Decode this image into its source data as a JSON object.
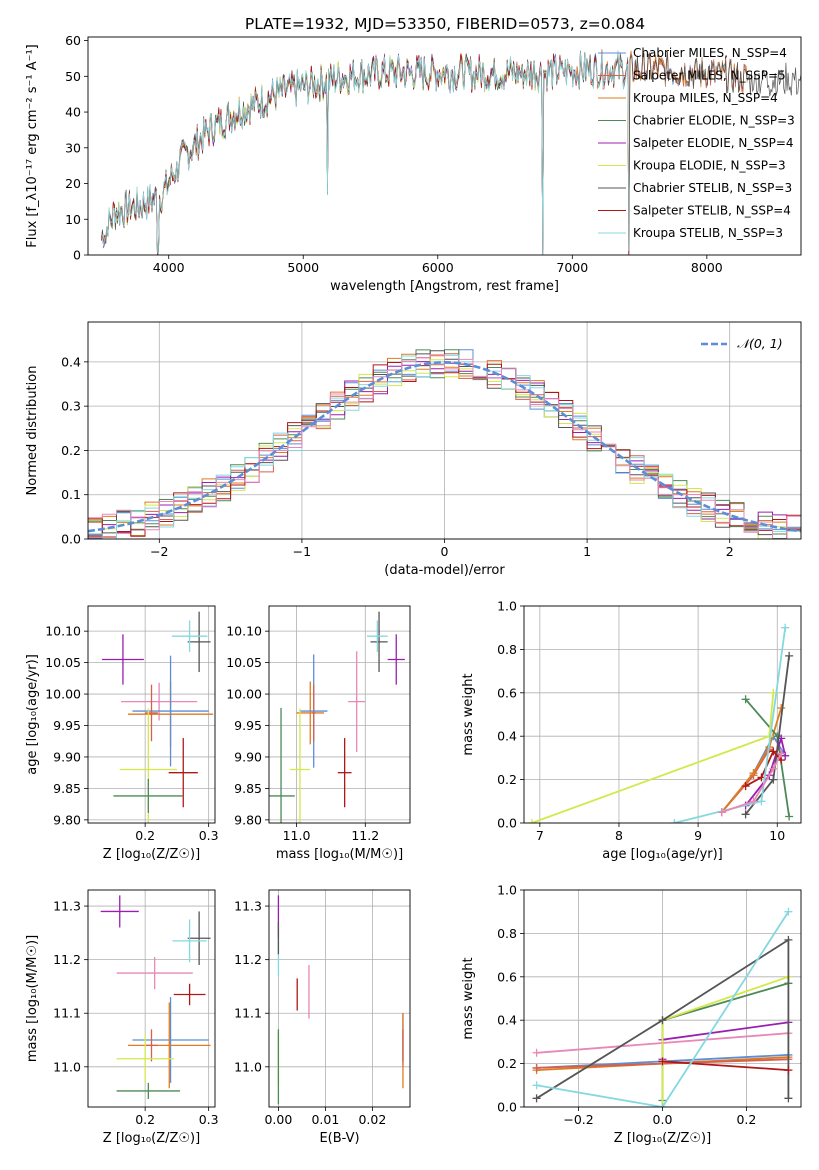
{
  "figure": {
    "title": "PLATE=1932, MJD=53350, FIBERID=0573, z=0.084"
  },
  "colors": {
    "c_miles": "#5b8ed6",
    "s_miles": "#d6604d",
    "k_miles": "#e07b20",
    "c_elodie": "#4e8a57",
    "s_elodie": "#9a1fb0",
    "k_elodie": "#d4e84a",
    "c_stelib": "#555555",
    "s_stelib": "#b01818",
    "k_stelib": "#84d8e0",
    "pink": "#e887b8",
    "normal": "#5b8ed6"
  },
  "chart_data": [
    {
      "id": "spectrum",
      "type": "line",
      "xlabel": "wavelength [Angstrom, rest frame]",
      "ylabel": "Flux [f_λ10⁻¹⁷ erg cm⁻² s⁻¹ A⁻¹]",
      "xlim": [
        3400,
        8700
      ],
      "ylim": [
        0,
        61
      ],
      "xticks": [
        4000,
        5000,
        6000,
        7000,
        8000
      ],
      "yticks": [
        0,
        10,
        20,
        30,
        40,
        50,
        60
      ],
      "continuum": {
        "x": [
          3500,
          3600,
          3800,
          3950,
          4100,
          4300,
          4500,
          4800,
          5000,
          5300,
          5600,
          6000,
          6400,
          6800,
          7200,
          7600,
          8000,
          8400
        ],
        "y": [
          5,
          12,
          14,
          17,
          27,
          35,
          40,
          45,
          47,
          50,
          51,
          51,
          51,
          51,
          52,
          52,
          51,
          49
        ]
      },
      "dropouts": [
        {
          "x": 3530,
          "y": 4
        },
        {
          "x": 3920,
          "y": 0
        },
        {
          "x": 5180,
          "y": 18
        },
        {
          "x": 6780,
          "y": 0
        },
        {
          "x": 7420,
          "y": 0
        }
      ],
      "series": [
        {
          "name": "Chabrier MILES, N_SSP=4",
          "color_key": "c_miles",
          "xmax": 8300
        },
        {
          "name": "Salpeter MILES, N_SSP=5",
          "color_key": "s_miles",
          "xmax": 8300
        },
        {
          "name": "Kroupa MILES, N_SSP=4",
          "color_key": "k_miles",
          "xmax": 8300
        },
        {
          "name": "Chabrier ELODIE, N_SSP=3",
          "color_key": "c_elodie",
          "xmax": 6800
        },
        {
          "name": "Salpeter ELODIE, N_SSP=4",
          "color_key": "s_elodie",
          "xmax": 6800
        },
        {
          "name": "Kroupa ELODIE, N_SSP=3",
          "color_key": "k_elodie",
          "xmax": 6800
        },
        {
          "name": "Chabrier STELIB, N_SSP=3",
          "color_key": "c_stelib",
          "xmax": 8700
        },
        {
          "name": "Salpeter STELIB, N_SSP=4",
          "color_key": "s_stelib",
          "xmax": 7420
        },
        {
          "name": "Kroupa STELIB, N_SSP=3",
          "color_key": "k_stelib",
          "xmax": 7420
        }
      ]
    },
    {
      "id": "residuals",
      "type": "histogram",
      "xlabel": "(data-model)/error",
      "ylabel": "Normed distribution",
      "xlim": [
        -2.5,
        2.5
      ],
      "ylim": [
        0,
        0.49
      ],
      "xticks": [
        -2,
        -1,
        0,
        1,
        2
      ],
      "yticks": [
        0.0,
        0.1,
        0.2,
        0.3,
        0.4
      ],
      "grid": true,
      "bin_width": 0.1,
      "legend": {
        "label": "𝒩(0, 1)",
        "position": "top-right"
      },
      "curve": {
        "name": "N(0,1)",
        "mean": 0,
        "sigma": 1
      }
    },
    {
      "id": "age_vs_Z",
      "type": "scatter",
      "xlabel": "Z [log₁₀(Z/Z☉)]",
      "ylabel": "age  [log₁₀(age/yr)]",
      "xlim": [
        0.11,
        0.31
      ],
      "ylim": [
        9.795,
        10.14
      ],
      "xticks": [
        0.2,
        0.3
      ],
      "yticks": [
        9.8,
        9.85,
        9.9,
        9.95,
        10.0,
        10.05,
        10.1
      ],
      "grid": true,
      "points": [
        {
          "color_key": "s_elodie",
          "x": 0.165,
          "y": 10.055,
          "xerr": 0.033,
          "yerr": 0.04
        },
        {
          "color_key": "c_stelib",
          "x": 0.285,
          "y": 10.083,
          "xerr": 0.018,
          "yerr": 0.048
        },
        {
          "color_key": "k_stelib",
          "x": 0.27,
          "y": 10.092,
          "xerr": 0.028,
          "yerr": 0.025
        },
        {
          "color_key": "pink",
          "x": 0.222,
          "y": 9.988,
          "xerr": 0.06,
          "yerr": 0.03
        },
        {
          "color_key": "k_miles",
          "x": 0.24,
          "y": 9.968,
          "xerr": 0.067,
          "yerr": 0.052
        },
        {
          "color_key": "c_miles",
          "x": 0.24,
          "y": 9.973,
          "xerr": 0.06,
          "yerr": 0.088
        },
        {
          "color_key": "s_miles",
          "x": 0.21,
          "y": 9.97,
          "xerr": 0.01,
          "yerr": 0.045
        },
        {
          "color_key": "k_elodie",
          "x": 0.205,
          "y": 9.88,
          "xerr": 0.045,
          "yerr": 0.097
        },
        {
          "color_key": "s_stelib",
          "x": 0.26,
          "y": 9.875,
          "xerr": 0.023,
          "yerr": 0.055
        },
        {
          "color_key": "c_elodie",
          "x": 0.205,
          "y": 9.838,
          "xerr": 0.055,
          "yerr": 0.027
        }
      ]
    },
    {
      "id": "age_vs_mass",
      "type": "scatter",
      "xlabel": "mass [log₁₀(M/M☉)]",
      "ylabel": "",
      "xlim": [
        10.92,
        11.33
      ],
      "ylim": [
        9.795,
        10.14
      ],
      "xticks": [
        11.0,
        11.2
      ],
      "yticks": [
        9.8,
        9.85,
        9.9,
        9.95,
        10.0,
        10.05,
        10.1
      ],
      "grid": true,
      "points": [
        {
          "color_key": "s_elodie",
          "x": 11.29,
          "y": 10.055,
          "xerr": 0.025,
          "yerr": 0.04
        },
        {
          "color_key": "c_stelib",
          "x": 11.24,
          "y": 10.083,
          "xerr": 0.025,
          "yerr": 0.048
        },
        {
          "color_key": "k_stelib",
          "x": 11.235,
          "y": 10.092,
          "xerr": 0.03,
          "yerr": 0.025
        },
        {
          "color_key": "pink",
          "x": 11.175,
          "y": 9.988,
          "xerr": 0.025,
          "yerr": 0.08
        },
        {
          "color_key": "k_miles",
          "x": 11.04,
          "y": 9.97,
          "xerr": 0.04,
          "yerr": 0.05
        },
        {
          "color_key": "c_miles",
          "x": 11.05,
          "y": 9.973,
          "xerr": 0.04,
          "yerr": 0.09
        },
        {
          "color_key": "s_miles",
          "x": 11.05,
          "y": 9.97,
          "xerr": 0.005,
          "yerr": 0.045
        },
        {
          "color_key": "k_elodie",
          "x": 11.01,
          "y": 9.88,
          "xerr": 0.03,
          "yerr": 0.097
        },
        {
          "color_key": "s_stelib",
          "x": 11.14,
          "y": 9.875,
          "xerr": 0.02,
          "yerr": 0.055
        },
        {
          "color_key": "c_elodie",
          "x": 10.955,
          "y": 9.838,
          "xerr": 0.04,
          "yerr": 0.14
        }
      ]
    },
    {
      "id": "weight_vs_age",
      "type": "line",
      "xlabel": "age  [log₁₀(age/yr)]",
      "ylabel": "mass weight",
      "xlim": [
        6.8,
        10.3
      ],
      "ylim": [
        0,
        1
      ],
      "xticks": [
        7,
        8,
        9,
        10
      ],
      "yticks": [
        0.0,
        0.2,
        0.4,
        0.6,
        0.8,
        1.0
      ],
      "grid": true,
      "series": [
        {
          "color_key": "c_miles",
          "x": [
            9.3,
            9.7,
            9.95,
            10.1
          ],
          "y": [
            0.05,
            0.23,
            0.4,
            0.31
          ]
        },
        {
          "color_key": "s_miles",
          "x": [
            9.3,
            9.7,
            9.9,
            10.05
          ],
          "y": [
            0.05,
            0.22,
            0.34,
            0.31
          ]
        },
        {
          "color_key": "k_miles",
          "x": [
            9.3,
            9.7,
            9.9,
            10.05
          ],
          "y": [
            0.05,
            0.23,
            0.35,
            0.53
          ]
        },
        {
          "color_key": "c_elodie",
          "x": [
            9.6,
            10.0,
            10.15
          ],
          "y": [
            0.57,
            0.4,
            0.03
          ]
        },
        {
          "color_key": "s_elodie",
          "x": [
            9.6,
            9.9,
            10.05,
            10.1
          ],
          "y": [
            0.08,
            0.22,
            0.39,
            0.31
          ]
        },
        {
          "color_key": "k_elodie",
          "x": [
            6.9,
            9.9,
            9.95
          ],
          "y": [
            0.0,
            0.4,
            0.6
          ]
        },
        {
          "color_key": "c_stelib",
          "x": [
            9.6,
            9.95,
            10.15
          ],
          "y": [
            0.04,
            0.2,
            0.77
          ]
        },
        {
          "color_key": "s_stelib",
          "x": [
            9.6,
            9.8,
            9.95,
            10.05
          ],
          "y": [
            0.17,
            0.21,
            0.33,
            0.29
          ]
        },
        {
          "color_key": "k_stelib",
          "x": [
            8.7,
            9.8,
            10.1
          ],
          "y": [
            0.0,
            0.1,
            0.9
          ]
        },
        {
          "color_key": "pink",
          "x": [
            9.3,
            9.7,
            9.95,
            10.05
          ],
          "y": [
            0.05,
            0.1,
            0.25,
            0.32
          ]
        }
      ]
    },
    {
      "id": "mass_vs_Z",
      "type": "scatter",
      "xlabel": "Z [log₁₀(Z/Z☉)]",
      "ylabel": "mass [log₁₀(M/M☉)]",
      "xlim": [
        0.11,
        0.31
      ],
      "ylim": [
        10.925,
        11.33
      ],
      "xticks": [
        0.2,
        0.3
      ],
      "yticks": [
        11.0,
        11.1,
        11.2,
        11.3
      ],
      "grid": true,
      "points": [
        {
          "color_key": "s_elodie",
          "x": 0.16,
          "y": 11.29,
          "xerr": 0.03,
          "yerr": 0.03
        },
        {
          "color_key": "c_stelib",
          "x": 0.285,
          "y": 11.24,
          "xerr": 0.018,
          "yerr": 0.05
        },
        {
          "color_key": "k_stelib",
          "x": 0.27,
          "y": 11.235,
          "xerr": 0.027,
          "yerr": 0.04
        },
        {
          "color_key": "pink",
          "x": 0.215,
          "y": 11.175,
          "xerr": 0.06,
          "yerr": 0.03
        },
        {
          "color_key": "s_stelib",
          "x": 0.27,
          "y": 11.135,
          "xerr": 0.025,
          "yerr": 0.02
        },
        {
          "color_key": "c_miles",
          "x": 0.24,
          "y": 11.05,
          "xerr": 0.06,
          "yerr": 0.08
        },
        {
          "color_key": "k_miles",
          "x": 0.238,
          "y": 11.04,
          "xerr": 0.065,
          "yerr": 0.08
        },
        {
          "color_key": "s_miles",
          "x": 0.21,
          "y": 11.04,
          "xerr": 0.01,
          "yerr": 0.03
        },
        {
          "color_key": "k_elodie",
          "x": 0.2,
          "y": 11.015,
          "xerr": 0.045,
          "yerr": 0.045
        },
        {
          "color_key": "c_elodie",
          "x": 0.205,
          "y": 10.955,
          "xerr": 0.05,
          "yerr": 0.015
        }
      ]
    },
    {
      "id": "mass_vs_ebv",
      "type": "scatter",
      "xlabel": "E(B-V)",
      "ylabel": "",
      "xlim": [
        -0.002,
        0.028
      ],
      "ylim": [
        10.925,
        11.33
      ],
      "xticks": [
        0.0,
        0.01,
        0.02
      ],
      "xticklabels": [
        "0.00",
        "0.01",
        "0.02"
      ],
      "yticks": [
        11.0,
        11.1,
        11.2,
        11.3
      ],
      "grid": true,
      "points": [
        {
          "color_key": "s_elodie",
          "x": 0.0,
          "y": 11.28,
          "xerr": 0,
          "yerr": 0.04
        },
        {
          "color_key": "k_stelib",
          "x": 0.0,
          "y": 11.21,
          "xerr": 0,
          "yerr": 0.04
        },
        {
          "color_key": "c_stelib",
          "x": 0.0,
          "y": 11.24,
          "xerr": 0,
          "yerr": 0.03
        },
        {
          "color_key": "s_stelib",
          "x": 0.004,
          "y": 11.135,
          "xerr": 0,
          "yerr": 0.03
        },
        {
          "color_key": "pink",
          "x": 0.0065,
          "y": 11.14,
          "xerr": 0,
          "yerr": 0.05
        },
        {
          "color_key": "k_elodie",
          "x": 0.0,
          "y": 11.015,
          "xerr": 0,
          "yerr": 0.05
        },
        {
          "color_key": "c_elodie",
          "x": 0.0,
          "y": 11.0,
          "xerr": 0,
          "yerr": 0.07
        },
        {
          "color_key": "c_miles",
          "x": 0.0265,
          "y": 11.05,
          "xerr": 0,
          "yerr": 0.05
        },
        {
          "color_key": "k_miles",
          "x": 0.0265,
          "y": 11.03,
          "xerr": 0,
          "yerr": 0.07
        },
        {
          "color_key": "s_miles",
          "x": 0.0265,
          "y": 11.04,
          "xerr": 0,
          "yerr": 0.03
        }
      ]
    },
    {
      "id": "weight_vs_Z",
      "type": "line",
      "xlabel": "Z [log₁₀(Z/Z☉)]",
      "ylabel": "mass weight",
      "xlim": [
        -0.33,
        0.33
      ],
      "ylim": [
        0,
        1
      ],
      "xticks": [
        -0.2,
        0.0,
        0.2
      ],
      "xticklabels": [
        "−0.2",
        "0.0",
        "0.2"
      ],
      "yticks": [
        0.0,
        0.2,
        0.4,
        0.6,
        0.8,
        1.0
      ],
      "grid": true,
      "series": [
        {
          "color_key": "c_miles",
          "x": [
            -0.3,
            0.0,
            0.3
          ],
          "y": [
            0.18,
            0.21,
            0.24
          ]
        },
        {
          "color_key": "k_miles",
          "x": [
            -0.3,
            0.0,
            0.3
          ],
          "y": [
            0.17,
            0.2,
            0.23
          ]
        },
        {
          "color_key": "s_miles",
          "x": [
            -0.3,
            0.0,
            0.3
          ],
          "y": [
            0.18,
            0.2,
            0.22
          ]
        },
        {
          "color_key": "pink",
          "x": [
            -0.3,
            0.3
          ],
          "y": [
            0.25,
            0.34
          ]
        },
        {
          "color_key": "s_elodie",
          "x": [
            0.0,
            0.0,
            0.3
          ],
          "y": [
            0.22,
            0.31,
            0.39
          ]
        },
        {
          "color_key": "c_elodie",
          "x": [
            0.0,
            0.0,
            0.3
          ],
          "y": [
            0.03,
            0.4,
            0.57
          ]
        },
        {
          "color_key": "k_elodie",
          "x": [
            0.0,
            0.0,
            0.3
          ],
          "y": [
            0.0,
            0.4,
            0.6
          ]
        },
        {
          "color_key": "c_stelib",
          "x": [
            -0.3,
            0.0,
            0.3,
            0.3
          ],
          "y": [
            0.04,
            0.4,
            0.77,
            0.04
          ]
        },
        {
          "color_key": "s_stelib",
          "x": [
            0.0,
            0.3
          ],
          "y": [
            0.21,
            0.17
          ]
        },
        {
          "color_key": "k_stelib",
          "x": [
            -0.3,
            0.0,
            0.3
          ],
          "y": [
            0.1,
            0.0,
            0.9
          ]
        }
      ]
    }
  ]
}
